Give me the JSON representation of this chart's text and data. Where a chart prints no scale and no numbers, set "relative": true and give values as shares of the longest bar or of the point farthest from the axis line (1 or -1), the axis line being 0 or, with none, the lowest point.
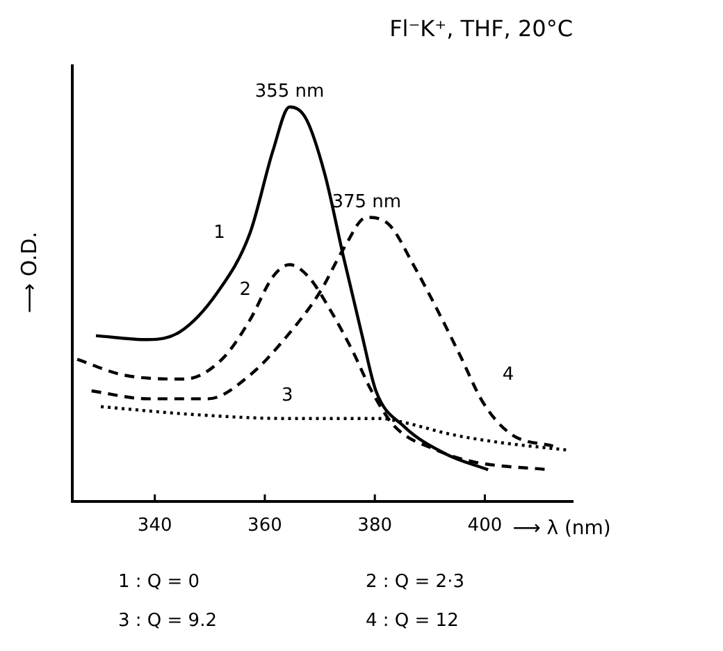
{
  "chart_data": {
    "type": "line",
    "title": "Fl⁻K⁺, THF, 20°C",
    "xlabel": "⟶ λ (nm)",
    "ylabel": "⟶ O.D.",
    "relative": true,
    "xlim": [
      325,
      416
    ],
    "xticks": [
      340,
      360,
      380,
      400
    ],
    "grid": false,
    "legend": false,
    "marker": "none",
    "annotations": [
      {
        "text": "355 nm",
        "x": 364.5,
        "y": 1.0
      },
      {
        "text": "375 nm",
        "x": 378.5,
        "y": 0.72
      },
      "1 : Q = 0",
      "2 : Q = 2·3",
      "3 : Q = 9.2",
      "4 : Q = 12"
    ],
    "series": [
      {
        "name": "1",
        "color": "#000000",
        "line_style": "solid",
        "x": [
          329.3,
          338.7,
          344.6,
          351.4,
          357.3,
          361.5,
          364.5,
          367.5,
          370.9,
          374.3,
          377.7,
          380.2,
          385.3,
          392.9,
          400.6
        ],
        "values": [
          0.42,
          0.41,
          0.43,
          0.53,
          0.68,
          0.89,
          1.0,
          0.97,
          0.83,
          0.62,
          0.42,
          0.28,
          0.19,
          0.12,
          0.08
        ]
      },
      {
        "name": "2",
        "color": "#000000",
        "line_style": "dashed",
        "x": [
          325.9,
          334.4,
          345.4,
          352.2,
          357.3,
          361.5,
          364.5,
          367.9,
          371.7,
          376.0,
          379.4,
          383.6,
          391.2,
          398.0,
          411.6
        ],
        "values": [
          0.36,
          0.32,
          0.31,
          0.36,
          0.46,
          0.57,
          0.6,
          0.57,
          0.49,
          0.38,
          0.28,
          0.19,
          0.13,
          0.1,
          0.08
        ]
      },
      {
        "name": "3",
        "color": "#000000",
        "line_style": "dotted",
        "x": [
          330.2,
          347.1,
          364.1,
          381.0,
          385.3,
          393.8,
          402.3,
          415.0
        ],
        "values": [
          0.24,
          0.22,
          0.21,
          0.21,
          0.2,
          0.17,
          0.15,
          0.13
        ]
      },
      {
        "name": "4",
        "color": "#000000",
        "line_style": "dashed",
        "x": [
          328.5,
          338.7,
          349.7,
          357.3,
          364.1,
          370.0,
          374.3,
          378.5,
          382.7,
          387.0,
          391.2,
          395.5,
          399.7,
          404.8,
          412.4
        ],
        "values": [
          0.28,
          0.26,
          0.26,
          0.32,
          0.42,
          0.53,
          0.64,
          0.72,
          0.7,
          0.6,
          0.49,
          0.37,
          0.25,
          0.17,
          0.14
        ]
      }
    ]
  }
}
